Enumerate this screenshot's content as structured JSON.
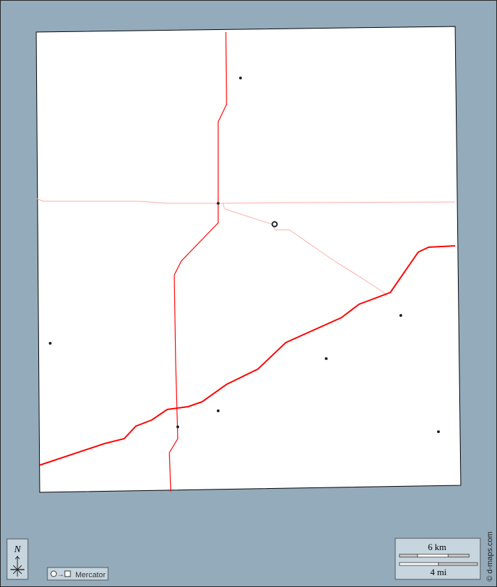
{
  "map": {
    "colors": {
      "sea": "#94abbb",
      "land": "#ffffff",
      "major_road": "#ff0000",
      "minor_road": "#ffaaaa",
      "border": "#000000"
    },
    "compass": {
      "label": "N"
    },
    "projection": {
      "label": "Mercator",
      "icon": "circle-to-square-icon"
    },
    "scale": {
      "km_label": "6 km",
      "mi_label": "4 mi"
    },
    "copyright": "© d-maps.com"
  }
}
